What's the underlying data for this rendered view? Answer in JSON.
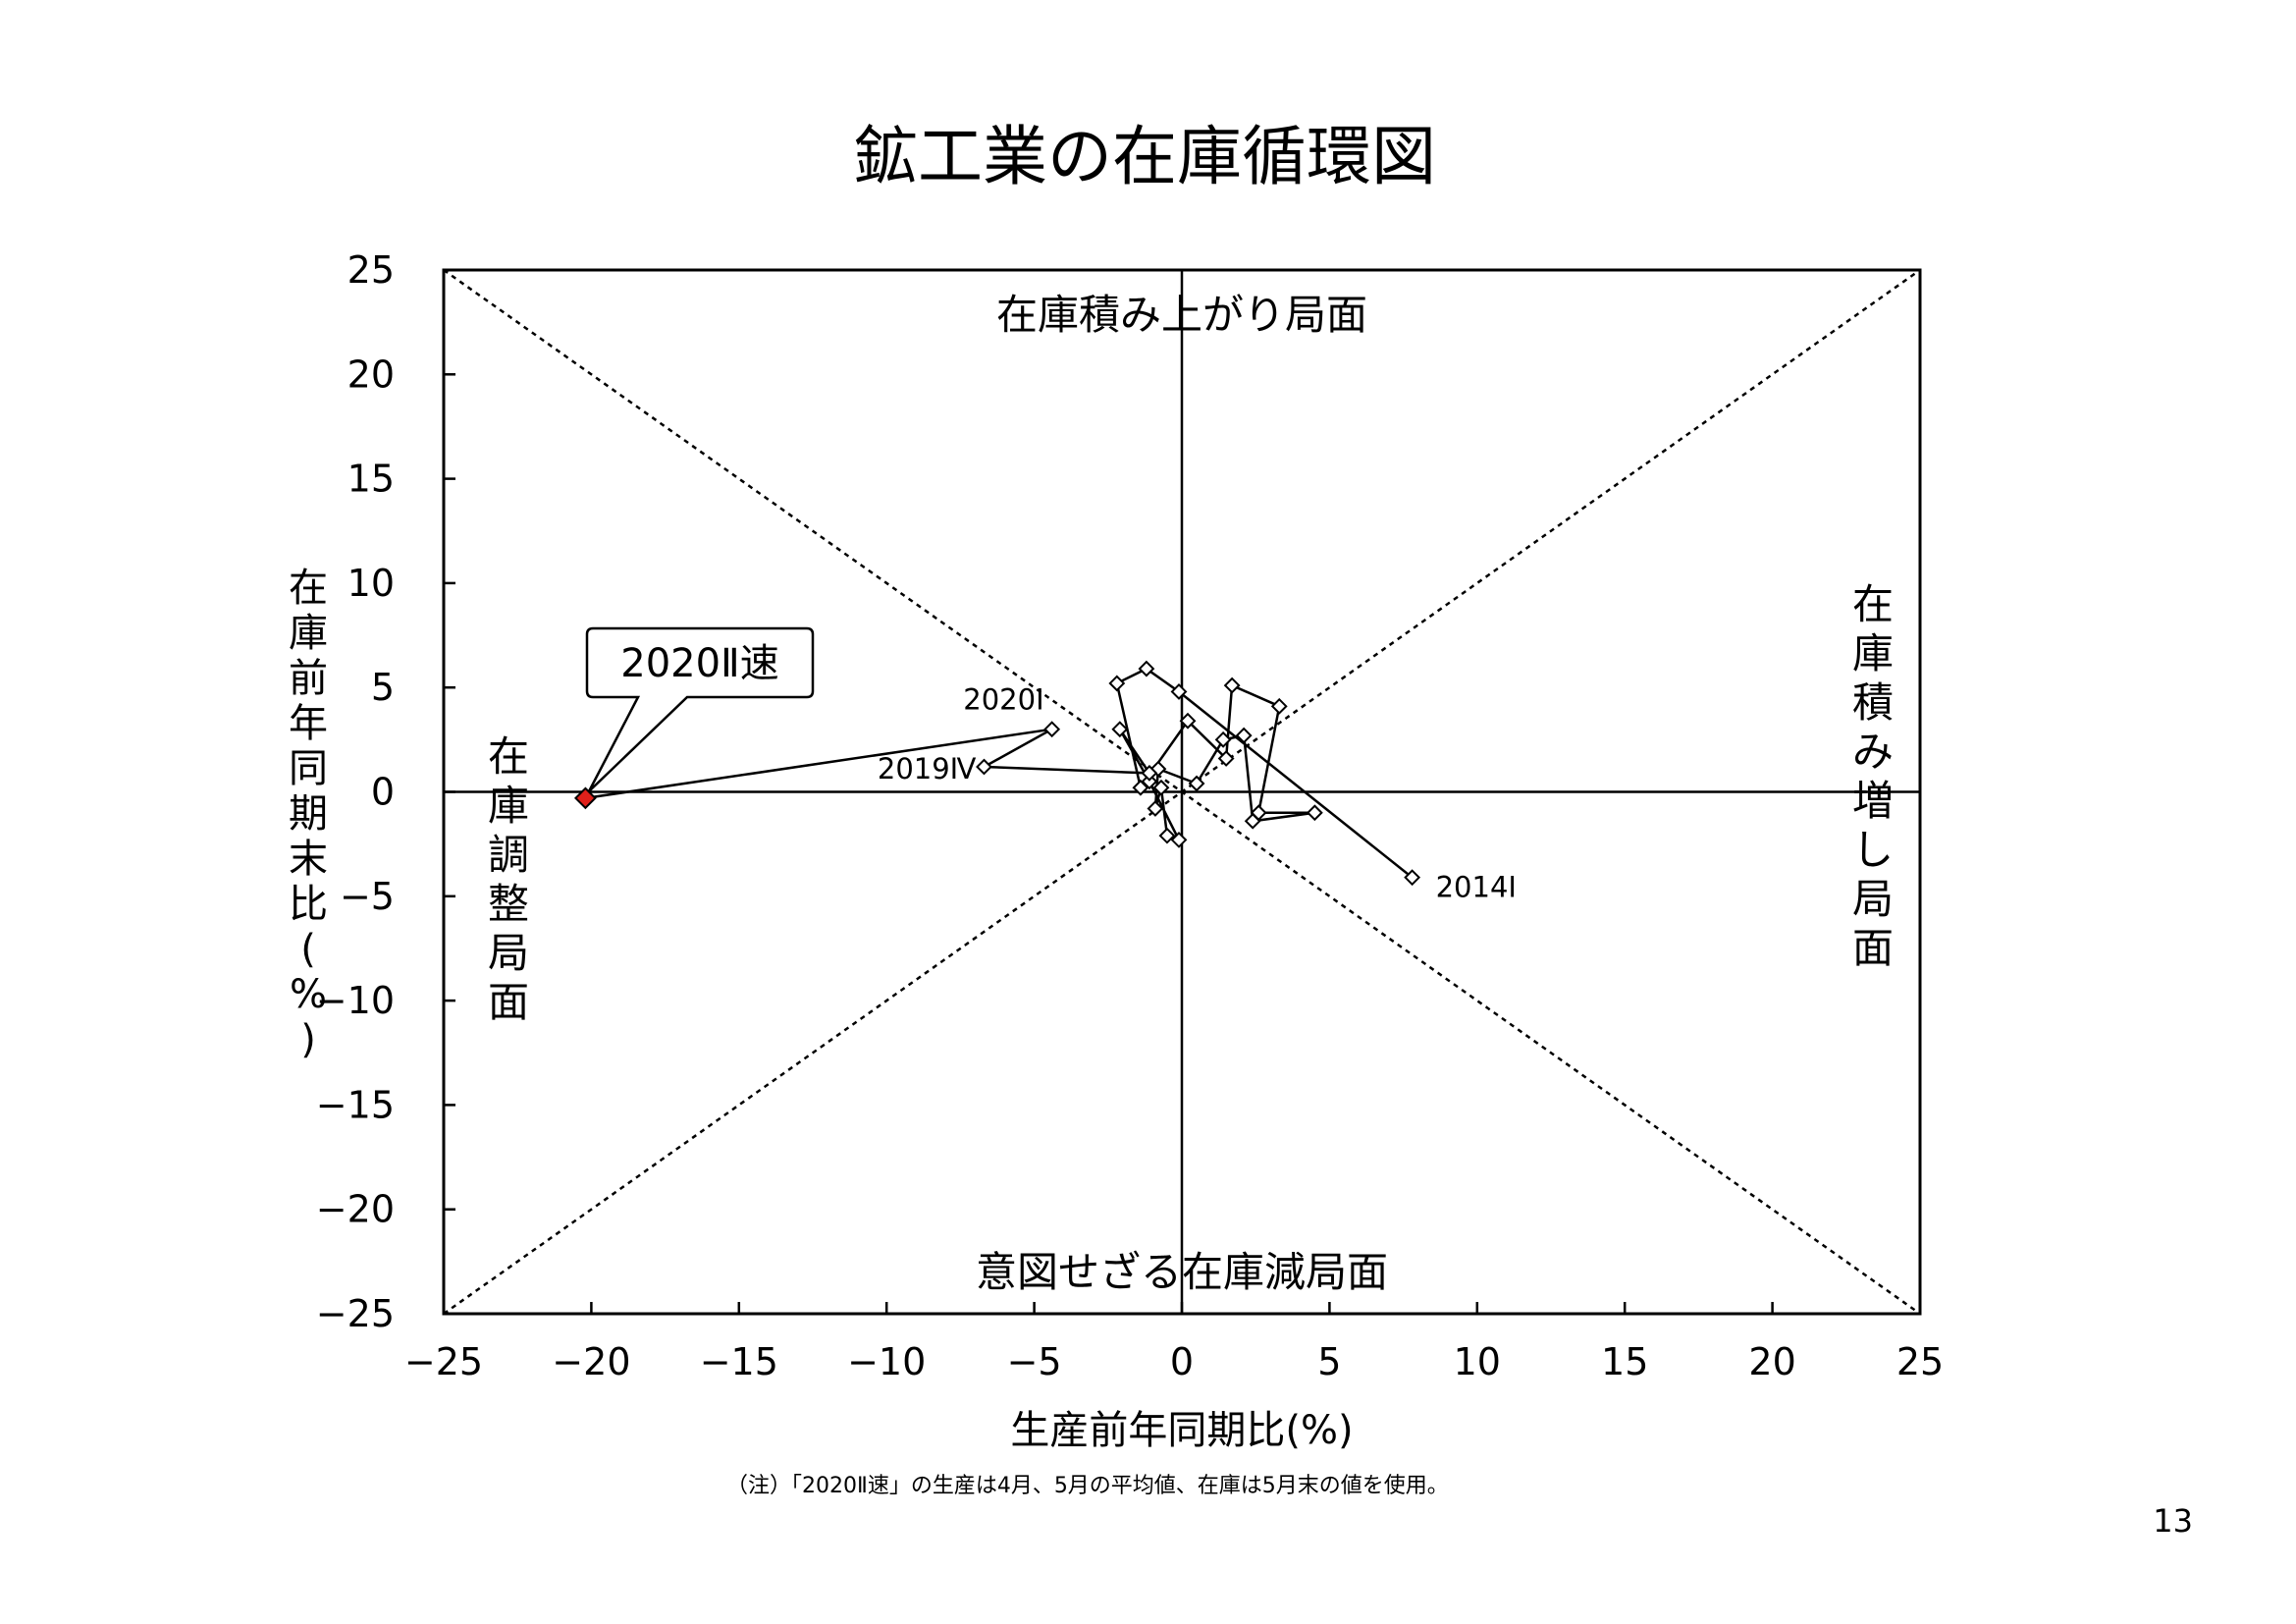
{
  "page": {
    "title": "鉱工業の在庫循環図",
    "note": "（注）「2020Ⅱ速」の生産は4月、5月の平均値、在庫は5月末の値を使用。",
    "page_number": "13"
  },
  "chart_data": {
    "type": "scatter",
    "title": "鉱工業の在庫循環図",
    "xlabel": "生産前年同期比(%)",
    "ylabel": "在庫前年同期末比(%)",
    "xlim": [
      -25,
      25
    ],
    "ylim": [
      -25,
      25
    ],
    "xticks": [
      -25,
      -20,
      -15,
      -10,
      -5,
      0,
      5,
      10,
      15,
      20,
      25
    ],
    "yticks": [
      -25,
      -20,
      -15,
      -10,
      -5,
      0,
      5,
      10,
      15,
      20,
      25
    ],
    "x_tick_labels": [
      "−25",
      "−20",
      "−15",
      "−10",
      "−5",
      "0",
      "5",
      "10",
      "15",
      "20",
      "25"
    ],
    "y_tick_labels": [
      "−25",
      "−20",
      "−15",
      "−10",
      "−5",
      "0",
      "5",
      "10",
      "15",
      "20",
      "25"
    ],
    "grid": false,
    "diagonals": "dotted 45-degree lines",
    "quadrant_labels": {
      "top": "在庫積み上がり局面",
      "right": "在庫積み増し局面",
      "bottom": "意図せざる在庫減局面",
      "left": "在庫調整局面"
    },
    "series": [
      {
        "marker": "diamond-open",
        "color": "#000000",
        "points": [
          {
            "x": 7.8,
            "y": -4.1,
            "label": "2014Ⅰ"
          },
          {
            "x": -0.1,
            "y": 4.8
          },
          {
            "x": -1.2,
            "y": 5.9
          },
          {
            "x": -2.2,
            "y": 5.2
          },
          {
            "x": -1.4,
            "y": 0.2
          },
          {
            "x": 0.2,
            "y": 3.4
          },
          {
            "x": 1.5,
            "y": 1.6
          },
          {
            "x": 1.7,
            "y": 5.1
          },
          {
            "x": 3.3,
            "y": 4.1
          },
          {
            "x": 2.6,
            "y": -1.0
          },
          {
            "x": 4.5,
            "y": -1.0
          },
          {
            "x": 2.4,
            "y": -1.4
          },
          {
            "x": 2.1,
            "y": 2.7
          },
          {
            "x": 1.4,
            "y": 2.5
          },
          {
            "x": 0.5,
            "y": 0.4
          },
          {
            "x": -0.8,
            "y": 1.1
          },
          {
            "x": -0.9,
            "y": -0.8
          },
          {
            "x": -0.7,
            "y": 0.2
          },
          {
            "x": -0.5,
            "y": -2.1
          },
          {
            "x": -0.1,
            "y": -2.3
          },
          {
            "x": -1.1,
            "y": 0.5
          },
          {
            "x": -2.1,
            "y": 3.0
          },
          {
            "x": -1.1,
            "y": 0.9
          },
          {
            "x": -6.7,
            "y": 1.2,
            "label": "2019Ⅳ"
          },
          {
            "x": -4.4,
            "y": 3.0,
            "label": "2020Ⅰ"
          }
        ]
      },
      {
        "marker": "diamond-filled",
        "color": "#e0201a",
        "points": [
          {
            "x": -20.2,
            "y": -0.3,
            "label": "2020Ⅱ速"
          }
        ]
      }
    ],
    "callout": "2020Ⅱ速"
  },
  "colors": {
    "highlight": "#e0201a",
    "line": "#000000"
  }
}
